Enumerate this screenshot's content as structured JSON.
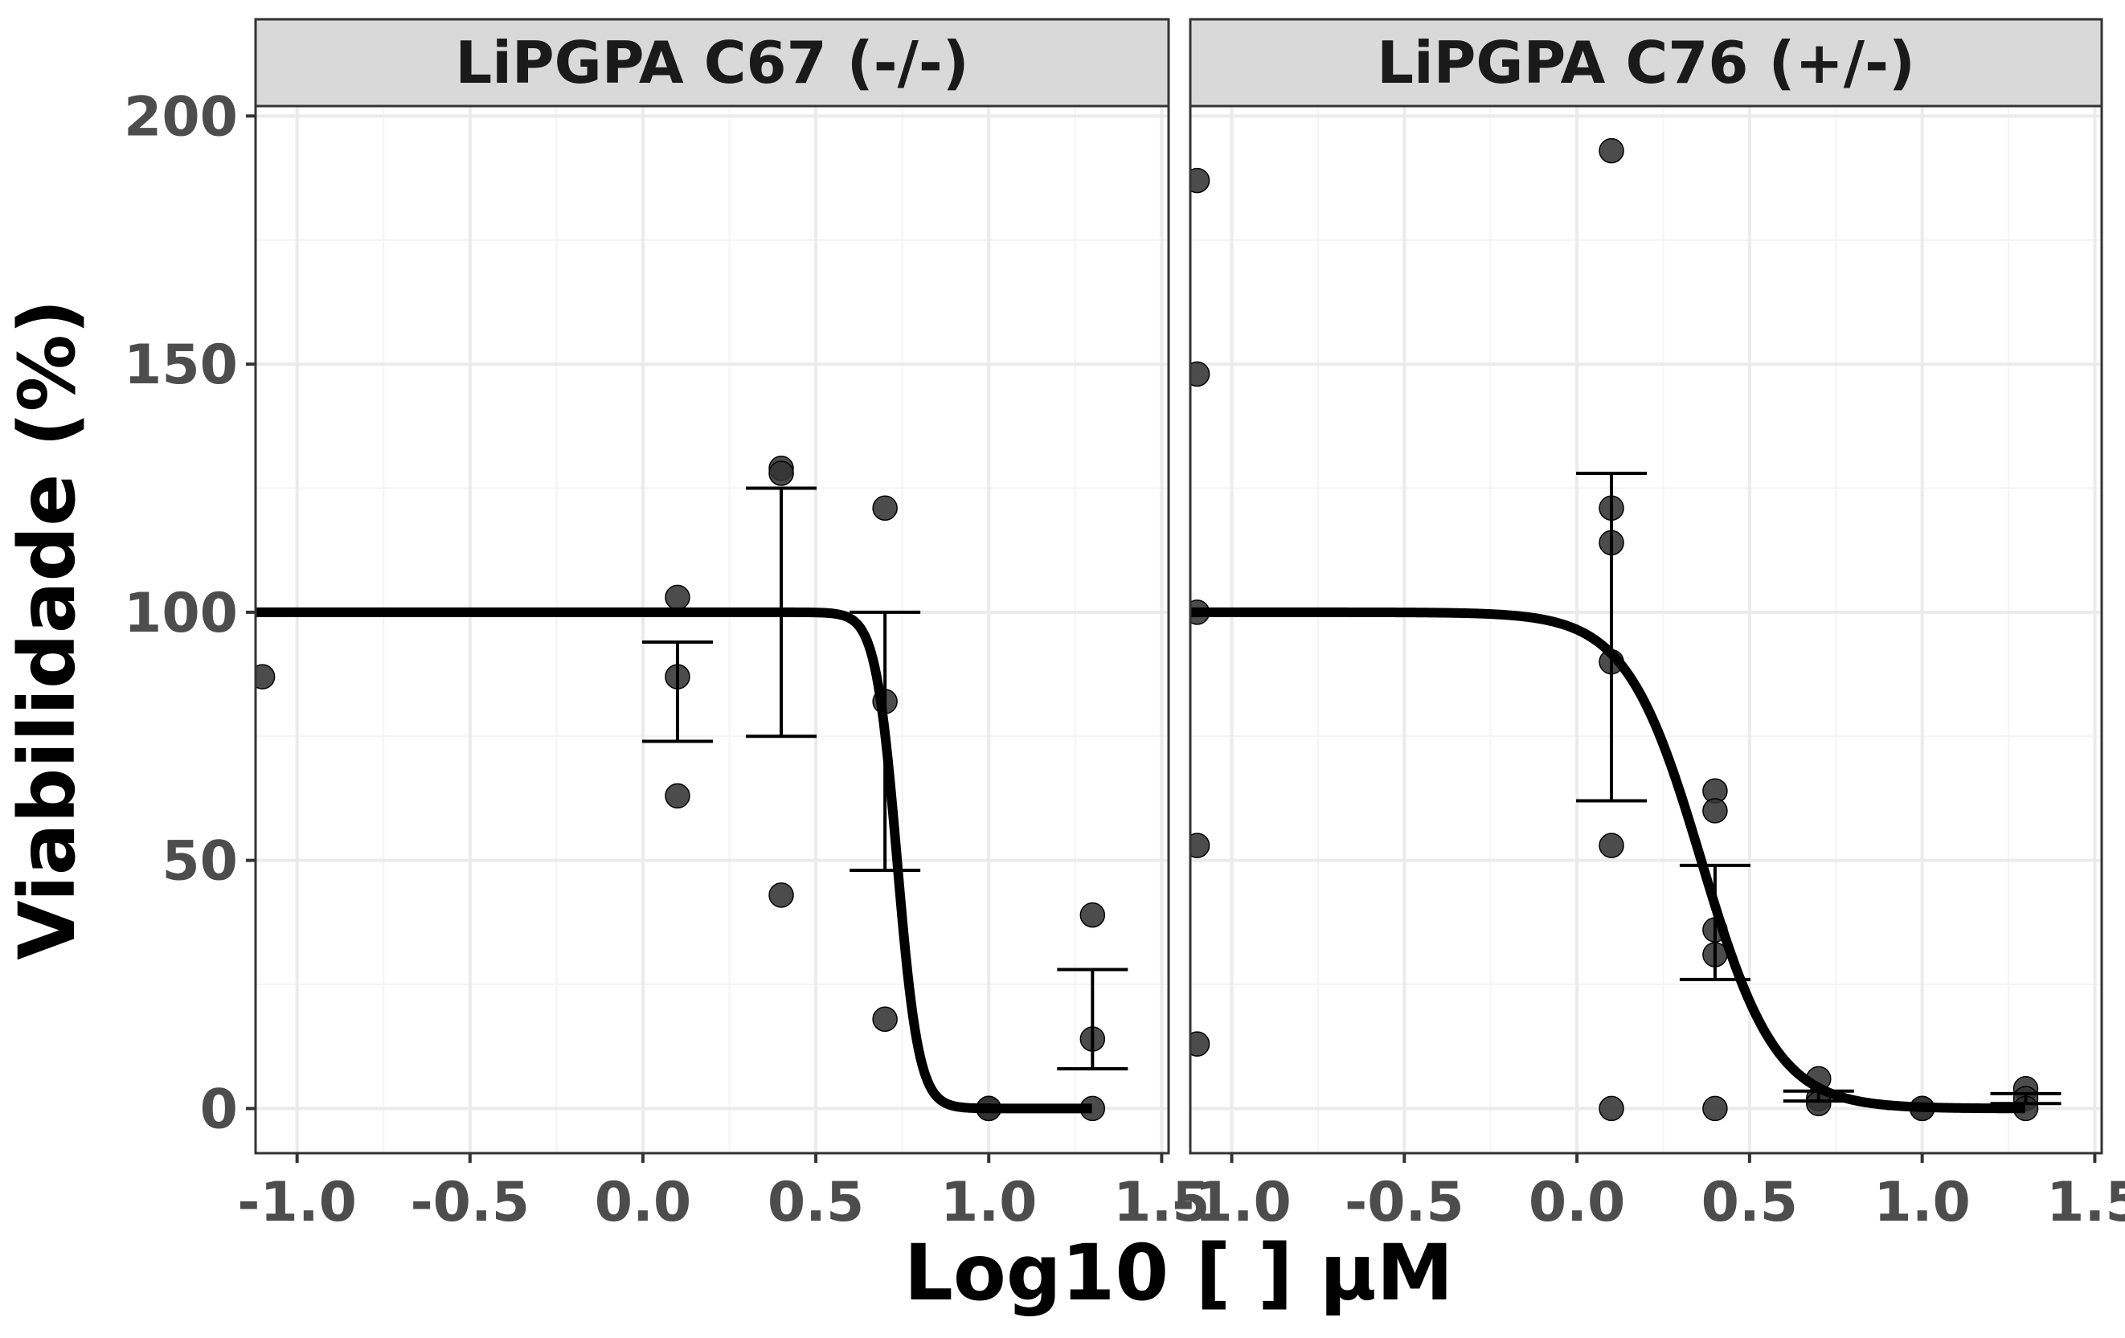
{
  "chart_data": {
    "type": "scatter",
    "xlabel": "Log10 [ ] µM",
    "ylabel": "Viabilidade (%)",
    "xlim": [
      -1.12,
      1.52
    ],
    "ylim": [
      -9,
      202
    ],
    "x_ticks": [
      -1.0,
      -0.5,
      0.0,
      0.5,
      1.0,
      1.5
    ],
    "x_tick_labels": [
      "-1.0",
      "-0.5",
      "0.0",
      "0.5",
      "1.0",
      "1.5"
    ],
    "y_ticks": [
      0,
      50,
      100,
      150,
      200
    ],
    "y_tick_labels": [
      "0",
      "50",
      "100",
      "150",
      "200"
    ],
    "grid": true,
    "colors": {
      "points": "#333333",
      "curve": "#000000",
      "strip_fill": "#d9d9d9",
      "grid_major": "#ebebeb",
      "grid_minor": "#f4f4f4"
    },
    "panels": [
      {
        "title": "LiPGPA C67 (-/-)",
        "points": [
          {
            "x": -1.1,
            "y": 87
          },
          {
            "x": 0.1,
            "y": 103
          },
          {
            "x": 0.1,
            "y": 87
          },
          {
            "x": 0.1,
            "y": 63
          },
          {
            "x": 0.4,
            "y": 129
          },
          {
            "x": 0.4,
            "y": 128
          },
          {
            "x": 0.4,
            "y": 43
          },
          {
            "x": 0.7,
            "y": 121
          },
          {
            "x": 0.7,
            "y": 82
          },
          {
            "x": 0.7,
            "y": 18
          },
          {
            "x": 1.0,
            "y": 0
          },
          {
            "x": 1.0,
            "y": 0
          },
          {
            "x": 1.0,
            "y": 0
          },
          {
            "x": 1.3,
            "y": 39
          },
          {
            "x": 1.3,
            "y": 14
          },
          {
            "x": 1.3,
            "y": 0
          }
        ],
        "error_bars": [
          {
            "x": 0.1,
            "low": 74,
            "high": 94
          },
          {
            "x": 0.4,
            "low": 75,
            "high": 125
          },
          {
            "x": 0.7,
            "low": 48,
            "high": 100
          },
          {
            "x": 1.0,
            "low": 0,
            "high": 0
          },
          {
            "x": 1.3,
            "low": 8,
            "high": 28
          }
        ],
        "curve": {
          "top": 100,
          "bottom": 0,
          "log_ic50": 0.735,
          "hill": 14
        }
      },
      {
        "title": "LiPGPA C76 (+/-)",
        "points": [
          {
            "x": -1.1,
            "y": 187
          },
          {
            "x": -1.1,
            "y": 148
          },
          {
            "x": -1.1,
            "y": 100
          },
          {
            "x": -1.1,
            "y": 53
          },
          {
            "x": -1.1,
            "y": 13
          },
          {
            "x": 0.1,
            "y": 193
          },
          {
            "x": 0.1,
            "y": 121
          },
          {
            "x": 0.1,
            "y": 114
          },
          {
            "x": 0.1,
            "y": 90
          },
          {
            "x": 0.1,
            "y": 53
          },
          {
            "x": 0.1,
            "y": 0
          },
          {
            "x": 0.4,
            "y": 64
          },
          {
            "x": 0.4,
            "y": 60
          },
          {
            "x": 0.4,
            "y": 36
          },
          {
            "x": 0.4,
            "y": 31
          },
          {
            "x": 0.4,
            "y": 0
          },
          {
            "x": 0.7,
            "y": 6
          },
          {
            "x": 0.7,
            "y": 2
          },
          {
            "x": 0.7,
            "y": 1
          },
          {
            "x": 1.0,
            "y": 0
          },
          {
            "x": 1.0,
            "y": 0
          },
          {
            "x": 1.3,
            "y": 4
          },
          {
            "x": 1.3,
            "y": 2
          },
          {
            "x": 1.3,
            "y": 0
          }
        ],
        "error_bars": [
          {
            "x": 0.1,
            "low": 62,
            "high": 128
          },
          {
            "x": 0.4,
            "low": 26,
            "high": 49
          },
          {
            "x": 0.7,
            "low": 1.5,
            "high": 3.5
          },
          {
            "x": 1.0,
            "low": 0,
            "high": 0
          },
          {
            "x": 1.3,
            "low": 1,
            "high": 3
          }
        ],
        "curve": {
          "top": 100,
          "bottom": 0,
          "log_ic50": 0.36,
          "hill": 4
        }
      }
    ]
  }
}
